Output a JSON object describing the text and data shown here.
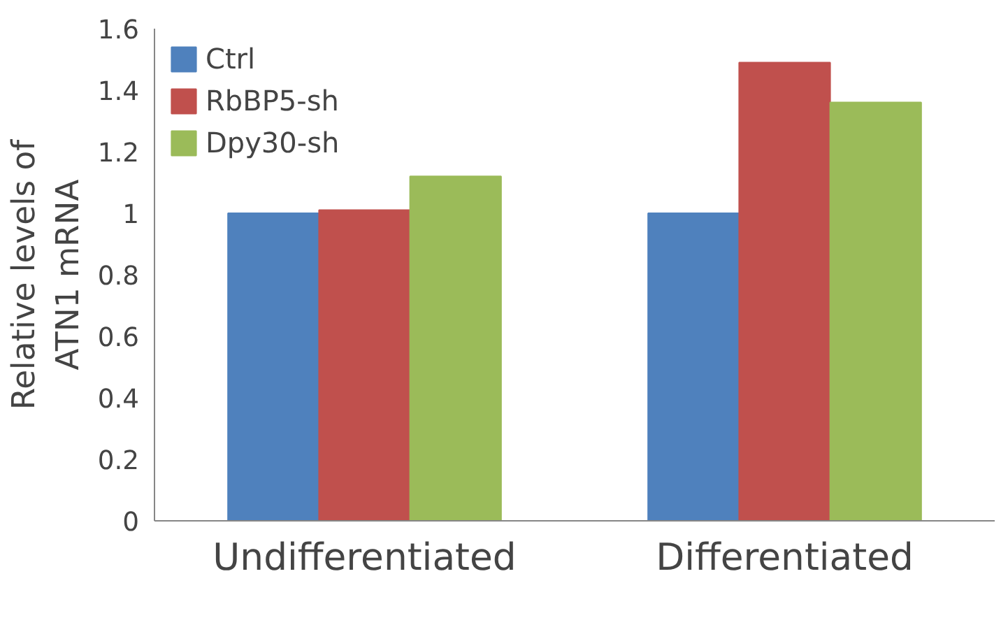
{
  "chart_data": {
    "type": "bar",
    "ylabel": "Relative levels of\nATN1 mRNA",
    "categories": [
      "Undifferentiated",
      "Differentiated"
    ],
    "series": [
      {
        "name": "Ctrl",
        "color": "#4f81bd",
        "values": [
          1.0,
          1.0
        ]
      },
      {
        "name": "RbBP5-sh",
        "color": "#c0504d",
        "values": [
          1.01,
          1.49
        ]
      },
      {
        "name": "Dpy30-sh",
        "color": "#9bbb59",
        "values": [
          1.12,
          1.36
        ]
      }
    ],
    "ylim": [
      0,
      1.6
    ],
    "yticks": [
      0,
      0.2,
      0.4,
      0.6,
      0.8,
      1,
      1.2,
      1.4,
      1.6
    ],
    "grid": false,
    "legend": "top left"
  }
}
